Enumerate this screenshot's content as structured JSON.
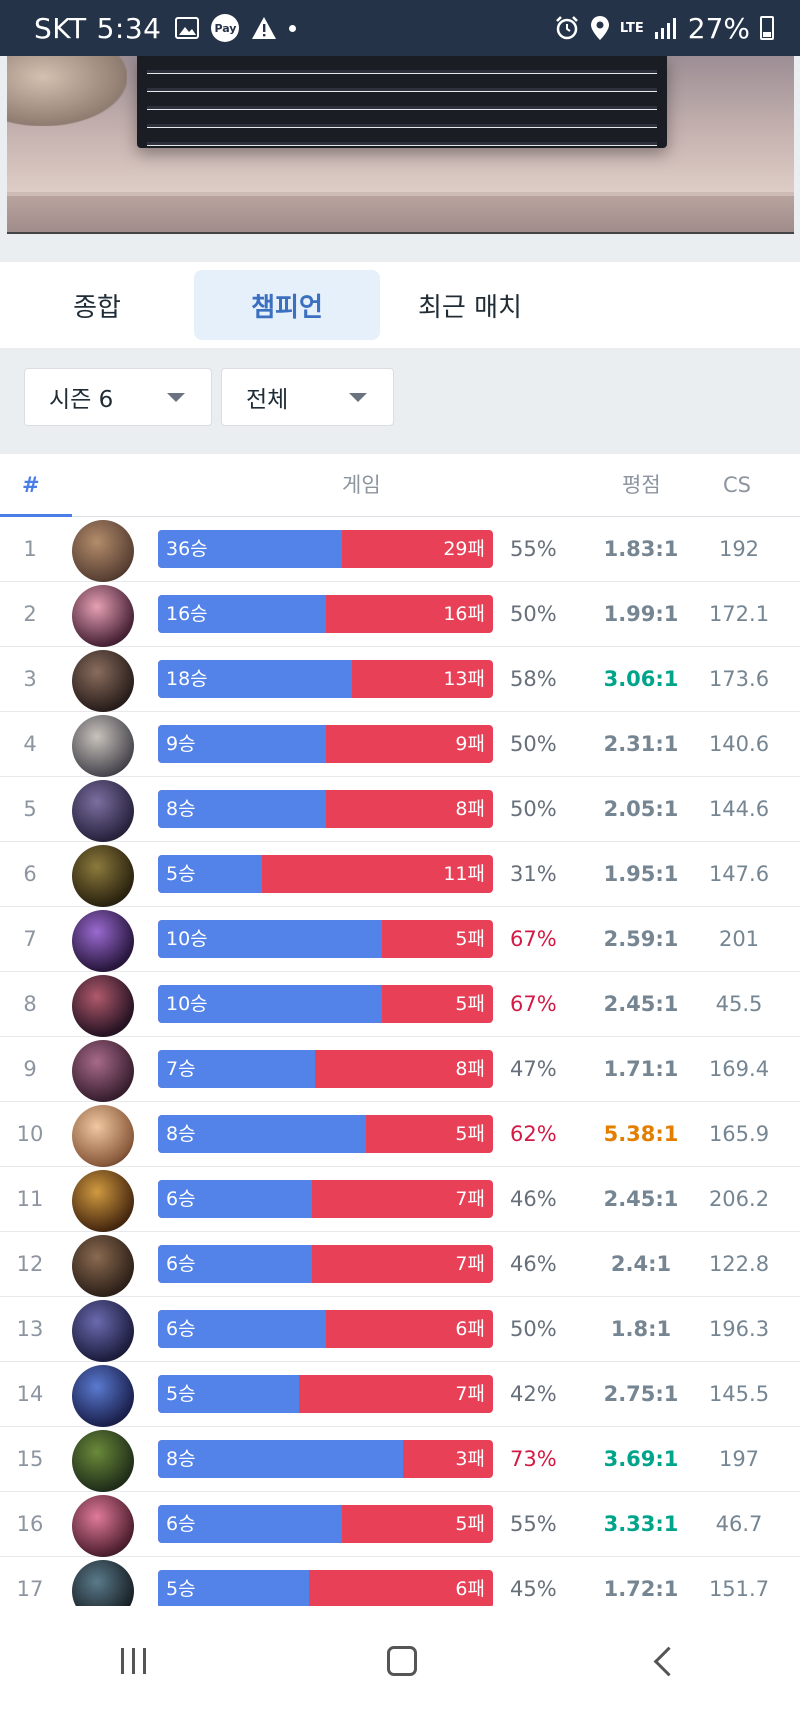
{
  "status_bar": {
    "carrier": "SKT",
    "time": "5:34",
    "pay_label": "Pay",
    "network": "LTE",
    "battery": "27%"
  },
  "tabs": [
    {
      "label": "종합",
      "active": false
    },
    {
      "label": "챔피언",
      "active": true
    },
    {
      "label": "최근 매치",
      "active": false
    }
  ],
  "filters": {
    "season": "시즌 6",
    "queue": "전체"
  },
  "table": {
    "headers": {
      "rank": "#",
      "games": "게임",
      "kda": "평점",
      "cs": "CS"
    },
    "rows": [
      {
        "rank": "1",
        "wins": "36승",
        "losses": "29패",
        "win_rate": 0.55,
        "pct": "55%",
        "kda": "1.83:1",
        "cs": "192",
        "pct_color": "normal",
        "kda_color": "normal"
      },
      {
        "rank": "2",
        "wins": "16승",
        "losses": "16패",
        "win_rate": 0.5,
        "pct": "50%",
        "kda": "1.99:1",
        "cs": "172.1",
        "pct_color": "normal",
        "kda_color": "normal"
      },
      {
        "rank": "3",
        "wins": "18승",
        "losses": "13패",
        "win_rate": 0.58,
        "pct": "58%",
        "kda": "3.06:1",
        "cs": "173.6",
        "pct_color": "normal",
        "kda_color": "green"
      },
      {
        "rank": "4",
        "wins": "9승",
        "losses": "9패",
        "win_rate": 0.5,
        "pct": "50%",
        "kda": "2.31:1",
        "cs": "140.6",
        "pct_color": "normal",
        "kda_color": "normal"
      },
      {
        "rank": "5",
        "wins": "8승",
        "losses": "8패",
        "win_rate": 0.5,
        "pct": "50%",
        "kda": "2.05:1",
        "cs": "144.6",
        "pct_color": "normal",
        "kda_color": "normal"
      },
      {
        "rank": "6",
        "wins": "5승",
        "losses": "11패",
        "win_rate": 0.31,
        "pct": "31%",
        "kda": "1.95:1",
        "cs": "147.6",
        "pct_color": "normal",
        "kda_color": "normal"
      },
      {
        "rank": "7",
        "wins": "10승",
        "losses": "5패",
        "win_rate": 0.67,
        "pct": "67%",
        "kda": "2.59:1",
        "cs": "201",
        "pct_color": "high",
        "kda_color": "normal"
      },
      {
        "rank": "8",
        "wins": "10승",
        "losses": "5패",
        "win_rate": 0.67,
        "pct": "67%",
        "kda": "2.45:1",
        "cs": "45.5",
        "pct_color": "high",
        "kda_color": "normal"
      },
      {
        "rank": "9",
        "wins": "7승",
        "losses": "8패",
        "win_rate": 0.47,
        "pct": "47%",
        "kda": "1.71:1",
        "cs": "169.4",
        "pct_color": "normal",
        "kda_color": "normal"
      },
      {
        "rank": "10",
        "wins": "8승",
        "losses": "5패",
        "win_rate": 0.62,
        "pct": "62%",
        "kda": "5.38:1",
        "cs": "165.9",
        "pct_color": "high",
        "kda_color": "orange"
      },
      {
        "rank": "11",
        "wins": "6승",
        "losses": "7패",
        "win_rate": 0.46,
        "pct": "46%",
        "kda": "2.45:1",
        "cs": "206.2",
        "pct_color": "normal",
        "kda_color": "normal"
      },
      {
        "rank": "12",
        "wins": "6승",
        "losses": "7패",
        "win_rate": 0.46,
        "pct": "46%",
        "kda": "2.4:1",
        "cs": "122.8",
        "pct_color": "normal",
        "kda_color": "normal"
      },
      {
        "rank": "13",
        "wins": "6승",
        "losses": "6패",
        "win_rate": 0.5,
        "pct": "50%",
        "kda": "1.8:1",
        "cs": "196.3",
        "pct_color": "normal",
        "kda_color": "normal"
      },
      {
        "rank": "14",
        "wins": "5승",
        "losses": "7패",
        "win_rate": 0.42,
        "pct": "42%",
        "kda": "2.75:1",
        "cs": "145.5",
        "pct_color": "normal",
        "kda_color": "normal"
      },
      {
        "rank": "15",
        "wins": "8승",
        "losses": "3패",
        "win_rate": 0.73,
        "pct": "73%",
        "kda": "3.69:1",
        "cs": "197",
        "pct_color": "high",
        "kda_color": "green"
      },
      {
        "rank": "16",
        "wins": "6승",
        "losses": "5패",
        "win_rate": 0.55,
        "pct": "55%",
        "kda": "3.33:1",
        "cs": "46.7",
        "pct_color": "normal",
        "kda_color": "green"
      },
      {
        "rank": "17",
        "wins": "5승",
        "losses": "6패",
        "win_rate": 0.45,
        "pct": "45%",
        "kda": "1.72:1",
        "cs": "151.7",
        "pct_color": "normal",
        "kda_color": "normal"
      }
    ]
  },
  "colors": {
    "win_bar": "#5383e8",
    "loss_bar": "#e84057",
    "kda_green": "#00a48a",
    "kda_orange": "#e37e00",
    "pct_high": "#d31a45",
    "accent": "#4a7ee6"
  },
  "icons": {
    "status_left": [
      "image-icon",
      "pay-icon",
      "warning-icon",
      "dot-icon"
    ],
    "status_right": [
      "alarm-icon",
      "location-icon",
      "lte-icon",
      "signal-icon",
      "battery-icon"
    ],
    "nav": [
      "recent-apps-icon",
      "home-icon",
      "back-icon"
    ]
  }
}
